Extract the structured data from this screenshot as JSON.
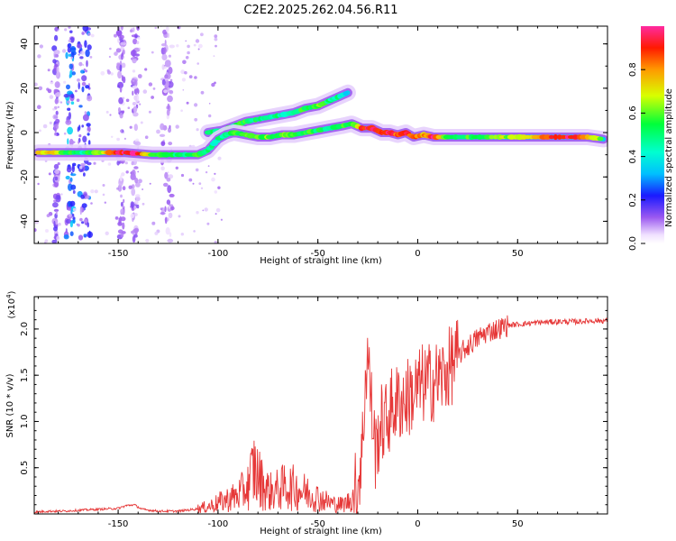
{
  "title": "C2E2.2025.262.04.56.R11",
  "chart_data": [
    {
      "type": "heatmap",
      "xlabel": "Height of straight line (km)",
      "ylabel": "Frequency (Hz)",
      "xlim": [
        -192,
        95
      ],
      "ylim": [
        -50,
        48
      ],
      "xticks": [
        -150,
        -100,
        -50,
        0,
        50
      ],
      "yticks": [
        -40,
        -20,
        0,
        20,
        40
      ],
      "colorbar": {
        "label": "Normalized spectral amplitude",
        "range": [
          0.0,
          1.0
        ],
        "ticks": [
          "0.0",
          "0.2",
          "0.4",
          "0.6",
          "0.8"
        ]
      },
      "main_trace": [
        [
          -190,
          -9,
          0.7
        ],
        [
          -182,
          -9,
          0.8
        ],
        [
          -175,
          -9,
          0.55
        ],
        [
          -168,
          -9,
          0.45
        ],
        [
          -160,
          -9,
          0.6
        ],
        [
          -153,
          -9,
          0.85
        ],
        [
          -147,
          -9,
          0.95
        ],
        [
          -140,
          -9.5,
          0.95
        ],
        [
          -133,
          -10,
          0.6
        ],
        [
          -126,
          -10,
          0.55
        ],
        [
          -118,
          -10,
          0.5
        ],
        [
          -110,
          -10,
          0.55
        ],
        [
          -105,
          -8,
          0.5
        ],
        [
          -100,
          -3,
          0.45
        ],
        [
          -96,
          -1,
          0.5
        ],
        [
          -92,
          0,
          0.55
        ],
        [
          -86,
          -1,
          0.6
        ],
        [
          -80,
          -2,
          0.55
        ],
        [
          -74,
          -2,
          0.6
        ],
        [
          -68,
          -1,
          0.6
        ],
        [
          -62,
          -1,
          0.55
        ],
        [
          -56,
          0,
          0.55
        ],
        [
          -50,
          1,
          0.5
        ],
        [
          -44,
          2,
          0.5
        ],
        [
          -38,
          3,
          0.55
        ],
        [
          -33,
          4,
          0.5
        ],
        [
          -28,
          2,
          0.9
        ],
        [
          -23,
          2,
          0.95
        ],
        [
          -18,
          0,
          0.85
        ],
        [
          -14,
          0,
          0.95
        ],
        [
          -10,
          -1,
          0.85
        ],
        [
          -6,
          0,
          0.9
        ],
        [
          -2,
          -2,
          0.85
        ],
        [
          3,
          -1,
          0.75
        ],
        [
          8,
          -2,
          0.95
        ],
        [
          15,
          -2,
          0.6
        ],
        [
          25,
          -2,
          0.55
        ],
        [
          35,
          -2,
          0.6
        ],
        [
          45,
          -2,
          0.65
        ],
        [
          55,
          -2,
          0.75
        ],
        [
          65,
          -2,
          0.85
        ],
        [
          75,
          -2,
          0.95
        ],
        [
          85,
          -2,
          0.75
        ],
        [
          93,
          -3,
          0.6
        ]
      ],
      "upper_branch": [
        [
          -105,
          0,
          0.45
        ],
        [
          -98,
          1,
          0.5
        ],
        [
          -92,
          3,
          0.5
        ],
        [
          -86,
          5,
          0.55
        ],
        [
          -80,
          6,
          0.5
        ],
        [
          -74,
          7,
          0.5
        ],
        [
          -68,
          8,
          0.45
        ],
        [
          -62,
          9,
          0.5
        ],
        [
          -56,
          11,
          0.55
        ],
        [
          -50,
          12,
          0.6
        ],
        [
          -45,
          14,
          0.5
        ],
        [
          -40,
          16,
          0.45
        ],
        [
          -35,
          18,
          0.35
        ]
      ],
      "background_bands": [
        {
          "x": [
            -182,
            -180
          ],
          "intensity": 0.15
        },
        {
          "x": [
            -176,
            -172
          ],
          "intensity": 0.3
        },
        {
          "x": [
            -170,
            -164
          ],
          "intensity": 0.25
        },
        {
          "x": [
            -150,
            -147
          ],
          "intensity": 0.12
        },
        {
          "x": [
            -143,
            -140
          ],
          "intensity": 0.12
        },
        {
          "x": [
            -128,
            -123
          ],
          "intensity": 0.12
        }
      ]
    },
    {
      "type": "line",
      "xlabel": "Height of straight line (km)",
      "ylabel": "SNR (10 * v/v)",
      "y_multiplier": "(x10",
      "y_multiplier_exp": "4",
      "y_multiplier_close": ")",
      "xlim": [
        -192,
        95
      ],
      "ylim": [
        0,
        2.35
      ],
      "xticks": [
        -150,
        -100,
        -50,
        0,
        50
      ],
      "yticks": [
        0.5,
        1.0,
        1.5,
        2.0
      ],
      "ytick_labels": [
        "0.5",
        "1.0",
        "1.5",
        "2.0"
      ],
      "color": "#e63838",
      "series": [
        {
          "name": "SNR",
          "x": [
            -192,
            -185,
            -178,
            -170,
            -160,
            -150,
            -146,
            -142,
            -138,
            -130,
            -120,
            -112,
            -105,
            -100,
            -95,
            -90,
            -85,
            -82,
            -80,
            -77,
            -74,
            -70,
            -66,
            -62,
            -58,
            -54,
            -50,
            -46,
            -42,
            -38,
            -34,
            -31,
            -28,
            -26,
            -25,
            -23,
            -21,
            -19,
            -16,
            -13,
            -10,
            -6,
            -2,
            2,
            6,
            10,
            14,
            18,
            22,
            26,
            30,
            35,
            40,
            45,
            50,
            55,
            60,
            70,
            80,
            88,
            92,
            95
          ],
          "y": [
            0.02,
            0.03,
            0.03,
            0.04,
            0.05,
            0.06,
            0.09,
            0.1,
            0.05,
            0.03,
            0.03,
            0.05,
            0.08,
            0.12,
            0.16,
            0.2,
            0.3,
            0.5,
            0.4,
            0.3,
            0.24,
            0.26,
            0.3,
            0.28,
            0.25,
            0.22,
            0.18,
            0.14,
            0.11,
            0.1,
            0.14,
            0.25,
            0.6,
            1.55,
            1.75,
            1.1,
            0.65,
            0.95,
            1.0,
            1.15,
            1.2,
            1.25,
            1.3,
            1.4,
            1.42,
            1.45,
            1.52,
            1.65,
            1.75,
            1.83,
            1.9,
            1.97,
            2.0,
            2.04,
            2.05,
            2.06,
            2.07,
            2.08,
            2.08,
            2.09,
            2.09,
            2.09
          ]
        }
      ]
    }
  ]
}
